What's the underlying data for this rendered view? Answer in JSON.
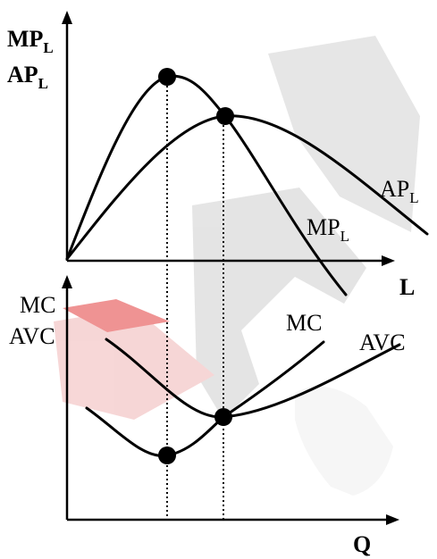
{
  "top_panel": {
    "y_label": "MP",
    "y_label_sub": "L",
    "y_label_2": "AP",
    "y_label_2_sub": "L",
    "x_label": "L",
    "curve_ap_label": "AP",
    "curve_ap_label_sub": "L",
    "curve_mp_label": "MP",
    "curve_mp_label_sub": "L"
  },
  "bottom_panel": {
    "y_label": "MC",
    "y_label_2": "AVC",
    "x_label": "Q",
    "curve_mc_label": "MC",
    "curve_avc_label": "AVC"
  },
  "colors": {
    "ink": "#000000",
    "watermark_gray": "#c9c9c9",
    "watermark_red": "#e23b3b",
    "watermark_pale": "#e6e6e6"
  }
}
